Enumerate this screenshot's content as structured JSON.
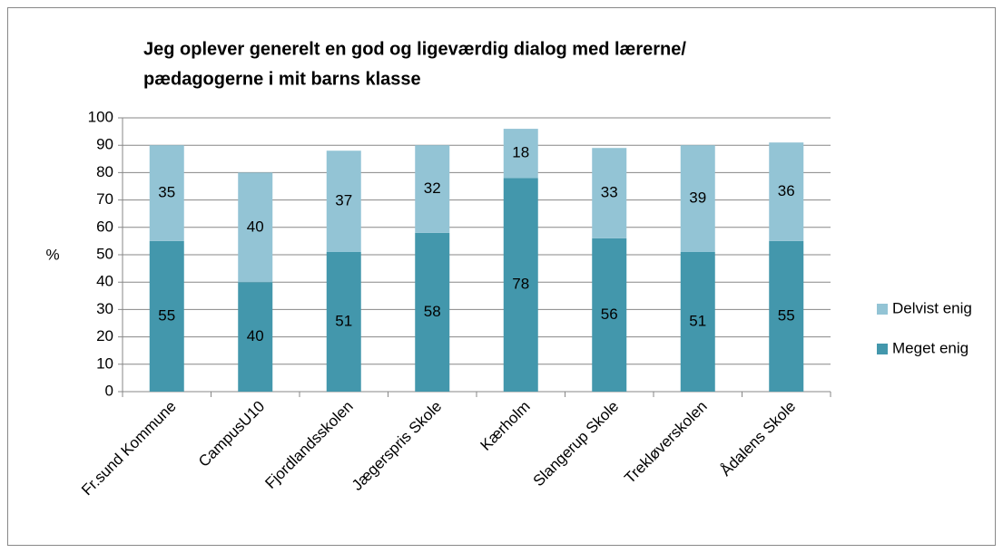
{
  "chart_data": {
    "type": "stacked_bar",
    "title": [
      "Jeg oplever generelt en god og ligeværdig dialog med lærerne/",
      "pædagogerne i mit barns klasse"
    ],
    "ylabel": "%",
    "categories": [
      "Fr.sund Kommune",
      "CampusU10",
      "Fjordlandsskolen",
      "Jægerspris Skole",
      "Kærholm",
      "Slangerup Skole",
      "Trekløverskolen",
      "Ådalens Skole"
    ],
    "series": [
      {
        "name": "Meget enig",
        "color": "#4397ac",
        "values": [
          55,
          40,
          51,
          58,
          78,
          56,
          51,
          55
        ]
      },
      {
        "name": "Delvist enig",
        "color": "#93c4d5",
        "values": [
          35,
          40,
          37,
          32,
          18,
          33,
          39,
          36
        ]
      }
    ],
    "ylim": [
      0,
      100
    ],
    "yticks": [
      0,
      10,
      20,
      30,
      40,
      50,
      60,
      70,
      80,
      90,
      100
    ],
    "grid": true,
    "legend": "right"
  }
}
